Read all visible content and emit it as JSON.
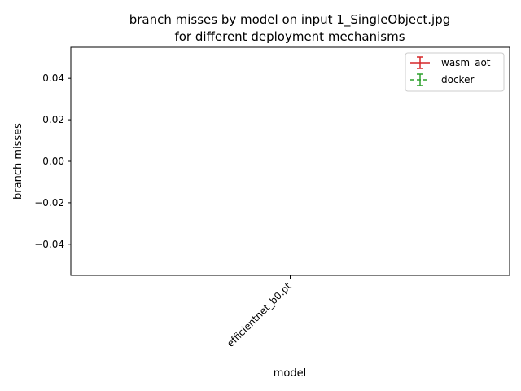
{
  "chart_data": {
    "type": "line",
    "title_line1": "branch misses by model on input 1_SingleObject.jpg",
    "title_line2": "for different deployment mechanisms",
    "xlabel": "model",
    "ylabel": "branch misses",
    "categories": [
      "efficientnet_b0.pt"
    ],
    "ylim": [
      -0.055,
      0.055
    ],
    "yticks": [
      0.04,
      0.02,
      0.0,
      -0.02,
      -0.04
    ],
    "ytick_labels": [
      "0.04",
      "0.02",
      "0.00",
      "−0.02",
      "−0.04"
    ],
    "grid": false,
    "legend_position": "top-right",
    "series": [
      {
        "name": "wasm_aot",
        "color": "#d62728",
        "linestyle": "solid",
        "values": [
          null
        ]
      },
      {
        "name": "docker",
        "color": "#2ca02c",
        "linestyle": "dashed",
        "values": [
          null
        ]
      }
    ]
  }
}
